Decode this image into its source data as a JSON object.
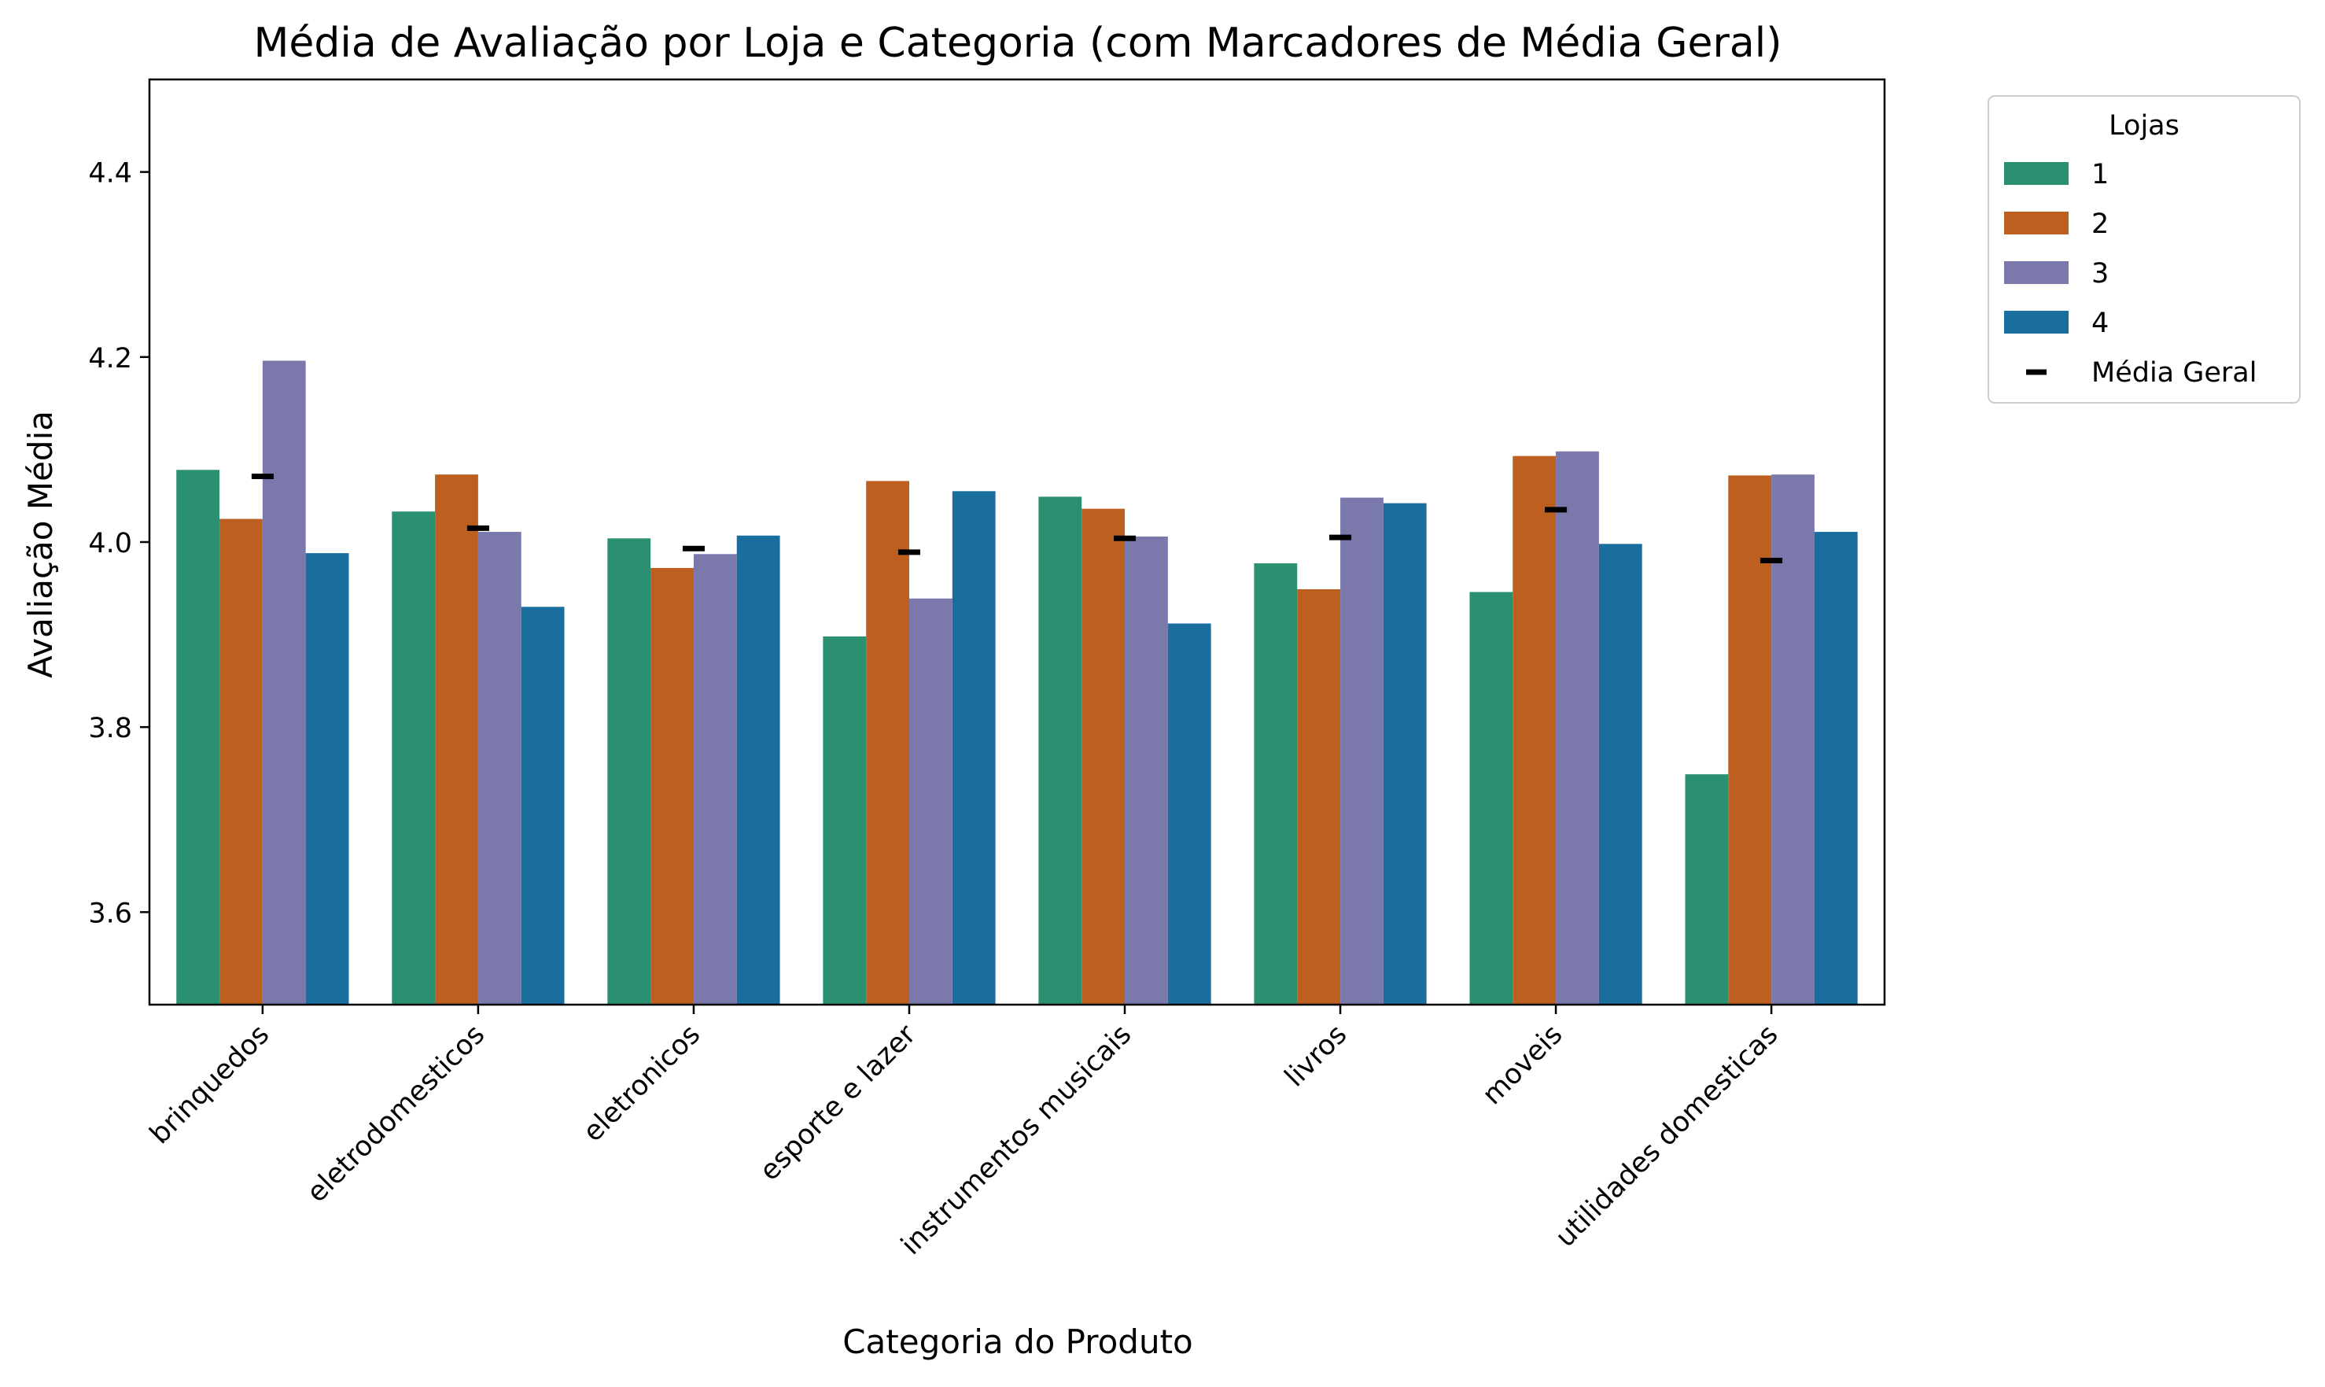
{
  "chart_data": {
    "type": "bar",
    "title": "Média de Avaliação por Loja e Categoria (com Marcadores de Média Geral)",
    "xlabel": "Categoria do Produto",
    "ylabel": "Avaliação Média",
    "ylim": [
      3.5,
      4.5
    ],
    "yticks": [
      3.6,
      3.8,
      4.0,
      4.2,
      4.4
    ],
    "ytick_labels": [
      "3.6",
      "3.8",
      "4.0",
      "4.2",
      "4.4"
    ],
    "categories": [
      "brinquedos",
      "eletrodomesticos",
      "eletronicos",
      "esporte e lazer",
      "instrumentos musicais",
      "livros",
      "moveis",
      "utilidades domesticas"
    ],
    "series": [
      {
        "name": "1",
        "color": "#2b8f72",
        "values": [
          4.078,
          4.033,
          4.004,
          3.898,
          4.049,
          3.977,
          3.946,
          3.749
        ]
      },
      {
        "name": "2",
        "color": "#bd5f1f",
        "values": [
          4.025,
          4.073,
          3.972,
          4.066,
          4.036,
          3.949,
          4.093,
          4.072
        ]
      },
      {
        "name": "3",
        "color": "#7b78ac",
        "values": [
          4.196,
          4.011,
          3.987,
          3.939,
          4.006,
          4.048,
          4.098,
          4.073
        ]
      },
      {
        "name": "4",
        "color": "#1a6e9e",
        "values": [
          3.988,
          3.93,
          4.007,
          4.055,
          3.912,
          4.042,
          3.998,
          4.011
        ]
      }
    ],
    "mean_markers": {
      "name": "Média Geral",
      "color": "#000000",
      "values": [
        4.071,
        4.015,
        3.993,
        3.989,
        4.004,
        4.005,
        4.035,
        3.98
      ]
    },
    "legend": {
      "title": "Lojas",
      "placement": "outside-top-right"
    },
    "grid": false
  }
}
